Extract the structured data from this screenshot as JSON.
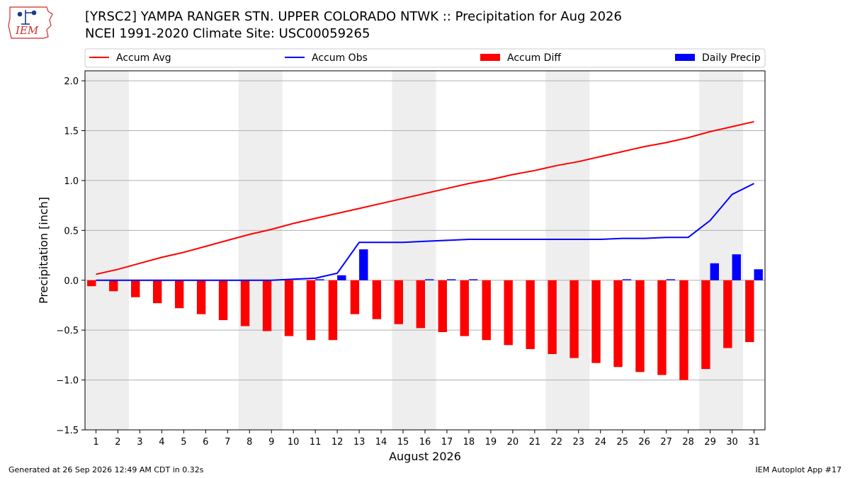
{
  "header": {
    "title_line1": "[YRSC2] YAMPA RANGER STN.  UPPER COLORADO NTWK :: Precipitation for Aug 2026",
    "title_line2": "NCEI 1991-2020 Climate Site: USC00059265",
    "logo_text": "IEM"
  },
  "footer": {
    "generated": "Generated at 26 Sep 2026 12:49 AM CDT in 0.32s",
    "app": "IEM Autoplot App #17"
  },
  "colors": {
    "accum_avg": "#ff0000",
    "accum_obs": "#0000ff",
    "accum_diff": "#ff0000",
    "daily_precip": "#0000ff",
    "weekend_shade": "#eeeeee",
    "grid": "#b0b0b0",
    "logo": "#d12a2a"
  },
  "chart_data": {
    "type": "bar",
    "xlabel": "August 2026",
    "ylabel": "Precipitation [inch]",
    "ylim": [
      -1.5,
      2.1
    ],
    "yticks": [
      -1.5,
      -1.0,
      -0.5,
      0.0,
      0.5,
      1.0,
      1.5,
      2.0
    ],
    "ytick_labels": [
      "−1.5",
      "−1.0",
      "−0.5",
      "0.0",
      "0.5",
      "1.0",
      "1.5",
      "2.0"
    ],
    "grid": "horizontal",
    "legend_position": "top",
    "x": [
      1,
      2,
      3,
      4,
      5,
      6,
      7,
      8,
      9,
      10,
      11,
      12,
      13,
      14,
      15,
      16,
      17,
      18,
      19,
      20,
      21,
      22,
      23,
      24,
      25,
      26,
      27,
      28,
      29,
      30,
      31
    ],
    "shaded_weekend_days": [
      [
        1,
        2
      ],
      [
        8,
        9
      ],
      [
        15,
        16
      ],
      [
        22,
        23
      ],
      [
        29,
        30
      ]
    ],
    "series": [
      {
        "name": "Accum Avg",
        "kind": "line",
        "values": [
          0.06,
          0.11,
          0.17,
          0.23,
          0.28,
          0.34,
          0.4,
          0.46,
          0.51,
          0.57,
          0.62,
          0.67,
          0.72,
          0.77,
          0.82,
          0.87,
          0.92,
          0.97,
          1.01,
          1.06,
          1.1,
          1.15,
          1.19,
          1.24,
          1.29,
          1.34,
          1.38,
          1.43,
          1.49,
          1.54,
          1.59
        ]
      },
      {
        "name": "Accum Obs",
        "kind": "line",
        "values": [
          0.0,
          0.0,
          0.0,
          0.0,
          0.0,
          0.0,
          0.0,
          0.0,
          0.0,
          0.01,
          0.02,
          0.07,
          0.38,
          0.38,
          0.38,
          0.39,
          0.4,
          0.41,
          0.41,
          0.41,
          0.41,
          0.41,
          0.41,
          0.41,
          0.42,
          0.42,
          0.43,
          0.43,
          0.6,
          0.86,
          0.97
        ]
      },
      {
        "name": "Accum Diff",
        "kind": "bar",
        "values": [
          -0.06,
          -0.11,
          -0.17,
          -0.23,
          -0.28,
          -0.34,
          -0.4,
          -0.46,
          -0.51,
          -0.56,
          -0.6,
          -0.6,
          -0.34,
          -0.39,
          -0.44,
          -0.48,
          -0.52,
          -0.56,
          -0.6,
          -0.65,
          -0.69,
          -0.74,
          -0.78,
          -0.83,
          -0.87,
          -0.92,
          -0.95,
          -1.0,
          -0.89,
          -0.68,
          -0.62
        ]
      },
      {
        "name": "Daily Precip",
        "kind": "bar",
        "values": [
          0.0,
          0.0,
          0.0,
          0.0,
          0.0,
          0.0,
          0.0,
          0.0,
          0.0,
          0.0,
          0.01,
          0.05,
          0.31,
          0.0,
          0.0,
          0.01,
          0.01,
          0.01,
          0.0,
          0.0,
          0.0,
          0.0,
          0.0,
          0.0,
          0.01,
          0.0,
          0.01,
          0.0,
          0.17,
          0.26,
          0.11
        ]
      }
    ]
  }
}
